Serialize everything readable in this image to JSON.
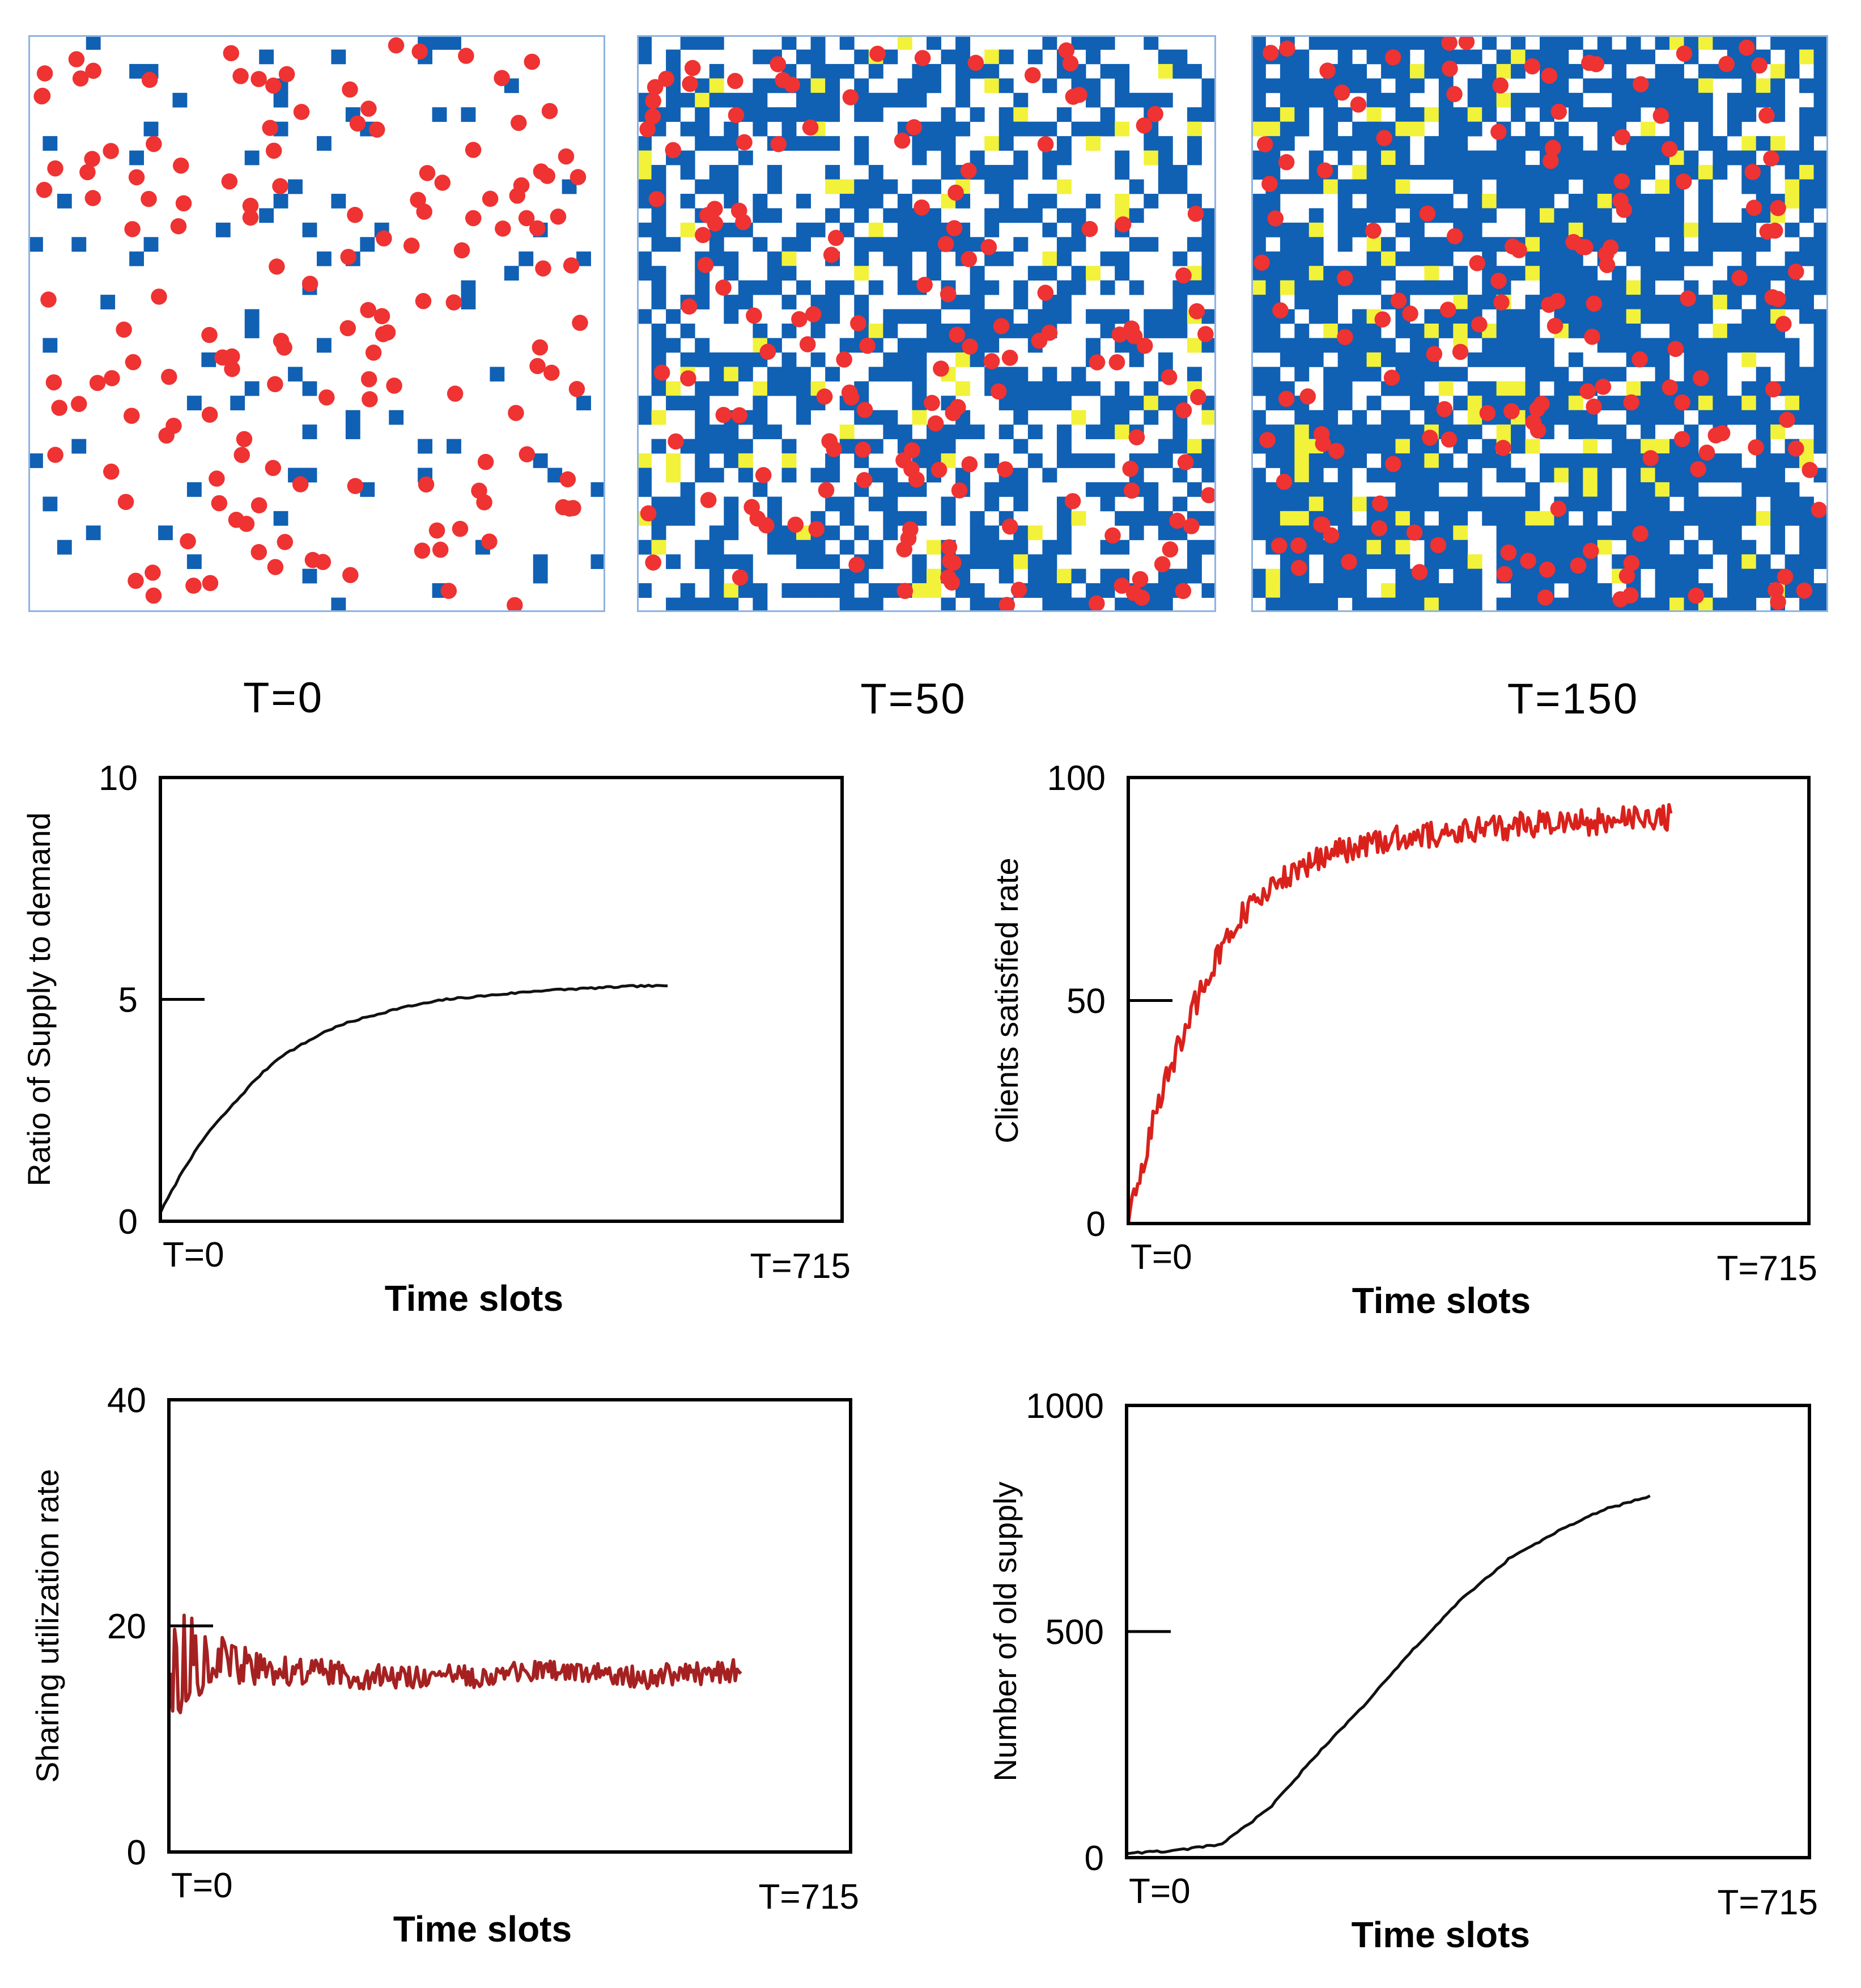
{
  "colors": {
    "agent": "#ef3232",
    "supply_cell": "#1060b4",
    "marked_cell": "#f2f23a",
    "panel_border": "#8fb4e0",
    "background": "#ffffff",
    "line_black": "#111111",
    "line_red": "#d9211c",
    "line_darkred": "#a52121"
  },
  "grid_snapshots": [
    {
      "label": "T=0",
      "time": 0,
      "supply_density": 0.06,
      "marked_density": 0.0,
      "agent_count": 150
    },
    {
      "label": "T=50",
      "time": 50,
      "supply_density": 0.45,
      "marked_density": 0.04,
      "agent_count": 150
    },
    {
      "label": "T=150",
      "time": 150,
      "supply_density": 0.7,
      "marked_density": 0.06,
      "agent_count": 150
    }
  ],
  "chart_data": [
    {
      "type": "line",
      "ylabel": "Ratio of Supply to demand",
      "xlabel": "Time slots",
      "x_tick_labels": [
        "T=0",
        "T=715"
      ],
      "xlim": [
        0,
        715
      ],
      "ylim": [
        0,
        10
      ],
      "y_ticks": [
        "0",
        "5",
        "10"
      ],
      "y_tick_marks": [
        5
      ],
      "color": "#111111",
      "series": [
        {
          "x": [
            0,
            25,
            50,
            75,
            100,
            125,
            150,
            175,
            200,
            250,
            300,
            350,
            400,
            450,
            500,
            535
          ],
          "y": [
            0.2,
            1.2,
            2.0,
            2.6,
            3.2,
            3.7,
            4.0,
            4.3,
            4.5,
            4.8,
            5.0,
            5.1,
            5.2,
            5.25,
            5.3,
            5.3
          ]
        }
      ]
    },
    {
      "type": "line",
      "ylabel": "Clients satisfied rate",
      "xlabel": "Time slots",
      "x_tick_labels": [
        "T=0",
        "T=715"
      ],
      "xlim": [
        0,
        715
      ],
      "ylim": [
        0,
        100
      ],
      "y_ticks": [
        "0",
        "50",
        "100"
      ],
      "y_tick_marks": [
        50
      ],
      "color": "#d9211c",
      "noise": 6,
      "series": [
        {
          "x": [
            0,
            20,
            40,
            60,
            80,
            100,
            120,
            150,
            175,
            200,
            250,
            300,
            350,
            400,
            450,
            500,
            550,
            570
          ],
          "y": [
            0,
            18,
            32,
            44,
            54,
            62,
            69,
            75,
            79,
            82,
            85,
            87,
            88,
            89,
            90,
            90,
            91,
            91
          ]
        }
      ]
    },
    {
      "type": "line",
      "ylabel": "Sharing utilization rate",
      "xlabel": "Time slots",
      "x_tick_labels": [
        "T=0",
        "T=715"
      ],
      "xlim": [
        0,
        715
      ],
      "ylim": [
        0,
        40
      ],
      "y_ticks": [
        "0",
        "20",
        "40"
      ],
      "y_tick_marks": [
        20
      ],
      "color": "#a52121",
      "noise": 5,
      "noise_decay": true,
      "series": [
        {
          "x": [
            0,
            5,
            20,
            50,
            100,
            150,
            200,
            300,
            400,
            500,
            600
          ],
          "y": [
            15,
            16,
            17,
            17,
            16,
            16,
            15.5,
            15.5,
            16,
            15.5,
            16
          ]
        }
      ]
    },
    {
      "type": "line",
      "ylabel": "Number of  old supply",
      "xlabel": "Time slots",
      "x_tick_labels": [
        "T=0",
        "T=715"
      ],
      "xlim": [
        0,
        715
      ],
      "ylim": [
        0,
        1000
      ],
      "y_ticks": [
        "0",
        "500",
        "1000"
      ],
      "y_tick_marks": [
        500
      ],
      "color": "#111111",
      "series": [
        {
          "x": [
            0,
            50,
            100,
            150,
            200,
            250,
            300,
            350,
            400,
            450,
            500,
            550
          ],
          "y": [
            10,
            15,
            30,
            110,
            230,
            340,
            460,
            570,
            660,
            720,
            770,
            800
          ]
        }
      ]
    }
  ]
}
